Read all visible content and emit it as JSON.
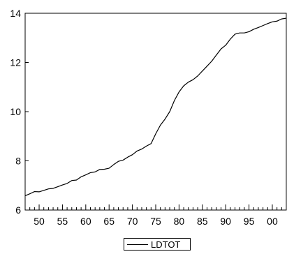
{
  "chart_data": {
    "type": "line",
    "title": "",
    "xlabel": "",
    "ylabel": "",
    "xlim": [
      1947,
      2003
    ],
    "ylim": [
      6,
      14
    ],
    "x_ticks": [
      1950,
      1955,
      1960,
      1965,
      1970,
      1975,
      1980,
      1985,
      1990,
      1995,
      2000
    ],
    "x_tick_labels": [
      "50",
      "55",
      "60",
      "65",
      "70",
      "75",
      "80",
      "85",
      "90",
      "95",
      "00"
    ],
    "y_ticks": [
      6,
      8,
      10,
      12,
      14
    ],
    "y_tick_labels": [
      "6",
      "8",
      "10",
      "12",
      "14"
    ],
    "grid": false,
    "legend_position": "bottom-center",
    "colors": {
      "line": "#000000",
      "axes": "#000000",
      "background": "#ffffff"
    },
    "series": [
      {
        "name": "LDTOT",
        "x": [
          1947,
          1948,
          1949,
          1950,
          1951,
          1952,
          1953,
          1954,
          1955,
          1956,
          1957,
          1958,
          1959,
          1960,
          1961,
          1962,
          1963,
          1964,
          1965,
          1966,
          1967,
          1968,
          1969,
          1970,
          1971,
          1972,
          1973,
          1974,
          1975,
          1976,
          1977,
          1978,
          1979,
          1980,
          1981,
          1982,
          1983,
          1984,
          1985,
          1986,
          1987,
          1988,
          1989,
          1990,
          1991,
          1992,
          1993,
          1994,
          1995,
          1996,
          1997,
          1998,
          1999,
          2000,
          2001,
          2002,
          2003
        ],
        "values": [
          6.58,
          6.66,
          6.75,
          6.74,
          6.8,
          6.86,
          6.88,
          6.95,
          7.02,
          7.08,
          7.2,
          7.22,
          7.35,
          7.43,
          7.52,
          7.55,
          7.65,
          7.66,
          7.7,
          7.85,
          7.98,
          8.03,
          8.15,
          8.25,
          8.4,
          8.48,
          8.6,
          8.7,
          9.1,
          9.45,
          9.7,
          10.0,
          10.45,
          10.8,
          11.05,
          11.2,
          11.3,
          11.45,
          11.65,
          11.85,
          12.05,
          12.3,
          12.55,
          12.7,
          12.95,
          13.15,
          13.2,
          13.2,
          13.25,
          13.35,
          13.42,
          13.5,
          13.58,
          13.65,
          13.68,
          13.77,
          13.8
        ]
      }
    ]
  }
}
